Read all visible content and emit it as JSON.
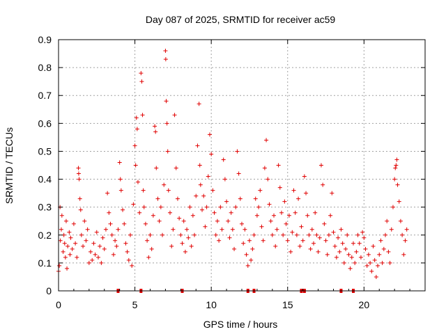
{
  "chart_data": {
    "type": "scatter",
    "marker": "plus",
    "title": "Day 087 of 2025, SRMTID for receiver ac59",
    "xlabel": "GPS time / hours",
    "ylabel": "SRMTID / TECUs",
    "xlim": [
      0,
      24
    ],
    "ylim": [
      0,
      0.9
    ],
    "grid": true,
    "color": "#e00000",
    "xticks": [
      "0",
      "5",
      "10",
      "15",
      "20"
    ],
    "yticks": [
      "0",
      "0.1",
      "0.2",
      "0.3",
      "0.4",
      "0.5",
      "0.6",
      "0.7",
      "0.8",
      "0.9"
    ],
    "points": [
      [
        0.0,
        0.07
      ],
      [
        0.05,
        0.09
      ],
      [
        0.1,
        0.3
      ],
      [
        0.12,
        0.18
      ],
      [
        0.18,
        0.22
      ],
      [
        0.22,
        0.27
      ],
      [
        0.3,
        0.14
      ],
      [
        0.35,
        0.2
      ],
      [
        0.4,
        0.17
      ],
      [
        0.45,
        0.12
      ],
      [
        0.5,
        0.25
      ],
      [
        0.55,
        0.08
      ],
      [
        0.6,
        0.16
      ],
      [
        0.7,
        0.21
      ],
      [
        0.75,
        0.13
      ],
      [
        0.8,
        0.19
      ],
      [
        0.9,
        0.15
      ],
      [
        1.0,
        0.24
      ],
      [
        1.1,
        0.17
      ],
      [
        1.2,
        0.12
      ],
      [
        1.3,
        0.44
      ],
      [
        1.32,
        0.42
      ],
      [
        1.35,
        0.4
      ],
      [
        1.4,
        0.33
      ],
      [
        1.45,
        0.29
      ],
      [
        1.5,
        0.2
      ],
      [
        1.6,
        0.16
      ],
      [
        1.7,
        0.25
      ],
      [
        1.8,
        0.18
      ],
      [
        1.9,
        0.22
      ],
      [
        2.0,
        0.1
      ],
      [
        2.1,
        0.14
      ],
      [
        2.2,
        0.11
      ],
      [
        2.3,
        0.17
      ],
      [
        2.4,
        0.13
      ],
      [
        2.5,
        0.21
      ],
      [
        2.6,
        0.12
      ],
      [
        2.7,
        0.16
      ],
      [
        2.8,
        0.1
      ],
      [
        2.9,
        0.19
      ],
      [
        3.0,
        0.15
      ],
      [
        3.1,
        0.22
      ],
      [
        3.2,
        0.35
      ],
      [
        3.3,
        0.28
      ],
      [
        3.4,
        0.24
      ],
      [
        3.5,
        0.2
      ],
      [
        3.6,
        0.13
      ],
      [
        3.7,
        0.18
      ],
      [
        3.8,
        0.16
      ],
      [
        3.9,
        0.22
      ],
      [
        4.0,
        0.46
      ],
      [
        4.05,
        0.4
      ],
      [
        4.1,
        0.36
      ],
      [
        4.2,
        0.29
      ],
      [
        4.3,
        0.24
      ],
      [
        4.4,
        0.17
      ],
      [
        4.5,
        0.14
      ],
      [
        4.6,
        0.11
      ],
      [
        4.7,
        0.2
      ],
      [
        4.8,
        0.09
      ],
      [
        4.9,
        0.31
      ],
      [
        5.0,
        0.52
      ],
      [
        5.05,
        0.45
      ],
      [
        5.1,
        0.62
      ],
      [
        5.15,
        0.58
      ],
      [
        5.2,
        0.39
      ],
      [
        5.3,
        0.28
      ],
      [
        5.4,
        0.78
      ],
      [
        5.45,
        0.75
      ],
      [
        5.5,
        0.63
      ],
      [
        5.55,
        0.36
      ],
      [
        5.6,
        0.3
      ],
      [
        5.7,
        0.24
      ],
      [
        5.8,
        0.18
      ],
      [
        5.9,
        0.12
      ],
      [
        6.0,
        0.2
      ],
      [
        6.1,
        0.15
      ],
      [
        6.2,
        0.27
      ],
      [
        6.3,
        0.59
      ],
      [
        6.35,
        0.57
      ],
      [
        6.4,
        0.44
      ],
      [
        6.5,
        0.33
      ],
      [
        6.6,
        0.25
      ],
      [
        6.7,
        0.3
      ],
      [
        6.8,
        0.2
      ],
      [
        6.9,
        0.38
      ],
      [
        7.0,
        0.86
      ],
      [
        7.02,
        0.83
      ],
      [
        7.05,
        0.68
      ],
      [
        7.1,
        0.6
      ],
      [
        7.15,
        0.5
      ],
      [
        7.2,
        0.36
      ],
      [
        7.3,
        0.28
      ],
      [
        7.4,
        0.16
      ],
      [
        7.5,
        0.22
      ],
      [
        7.6,
        0.63
      ],
      [
        7.7,
        0.44
      ],
      [
        7.8,
        0.33
      ],
      [
        7.9,
        0.26
      ],
      [
        8.0,
        0.2
      ],
      [
        8.1,
        0.17
      ],
      [
        8.2,
        0.25
      ],
      [
        8.3,
        0.14
      ],
      [
        8.4,
        0.22
      ],
      [
        8.5,
        0.19
      ],
      [
        8.6,
        0.3
      ],
      [
        8.7,
        0.16
      ],
      [
        8.8,
        0.27
      ],
      [
        8.9,
        0.2
      ],
      [
        9.0,
        0.34
      ],
      [
        9.1,
        0.52
      ],
      [
        9.2,
        0.67
      ],
      [
        9.25,
        0.45
      ],
      [
        9.3,
        0.38
      ],
      [
        9.4,
        0.29
      ],
      [
        9.5,
        0.34
      ],
      [
        9.6,
        0.23
      ],
      [
        9.7,
        0.3
      ],
      [
        9.8,
        0.41
      ],
      [
        9.9,
        0.56
      ],
      [
        10.0,
        0.49
      ],
      [
        10.1,
        0.36
      ],
      [
        10.2,
        0.28
      ],
      [
        10.3,
        0.2
      ],
      [
        10.4,
        0.25
      ],
      [
        10.5,
        0.18
      ],
      [
        10.6,
        0.3
      ],
      [
        10.7,
        0.22
      ],
      [
        10.8,
        0.47
      ],
      [
        10.9,
        0.4
      ],
      [
        11.0,
        0.32
      ],
      [
        11.1,
        0.25
      ],
      [
        11.2,
        0.19
      ],
      [
        11.3,
        0.28
      ],
      [
        11.4,
        0.22
      ],
      [
        11.5,
        0.15
      ],
      [
        11.6,
        0.3
      ],
      [
        11.7,
        0.5
      ],
      [
        11.8,
        0.42
      ],
      [
        11.9,
        0.33
      ],
      [
        12.0,
        0.24
      ],
      [
        12.1,
        0.17
      ],
      [
        12.2,
        0.22
      ],
      [
        12.3,
        0.13
      ],
      [
        12.4,
        0.09
      ],
      [
        12.5,
        0.18
      ],
      [
        12.6,
        0.11
      ],
      [
        12.7,
        0.15
      ],
      [
        12.8,
        0.2
      ],
      [
        12.9,
        0.33
      ],
      [
        13.0,
        0.27
      ],
      [
        13.1,
        0.3
      ],
      [
        13.2,
        0.36
      ],
      [
        13.3,
        0.23
      ],
      [
        13.4,
        0.18
      ],
      [
        13.5,
        0.44
      ],
      [
        13.6,
        0.54
      ],
      [
        13.7,
        0.4
      ],
      [
        13.8,
        0.31
      ],
      [
        13.9,
        0.25
      ],
      [
        14.0,
        0.2
      ],
      [
        14.1,
        0.27
      ],
      [
        14.2,
        0.16
      ],
      [
        14.3,
        0.22
      ],
      [
        14.4,
        0.45
      ],
      [
        14.5,
        0.37
      ],
      [
        14.6,
        0.28
      ],
      [
        14.7,
        0.2
      ],
      [
        14.8,
        0.32
      ],
      [
        14.9,
        0.24
      ],
      [
        15.0,
        0.18
      ],
      [
        15.1,
        0.27
      ],
      [
        15.2,
        0.14
      ],
      [
        15.3,
        0.21
      ],
      [
        15.4,
        0.36
      ],
      [
        15.5,
        0.28
      ],
      [
        15.6,
        0.2
      ],
      [
        15.7,
        0.33
      ],
      [
        15.8,
        0.16
      ],
      [
        15.9,
        0.23
      ],
      [
        16.0,
        0.18
      ],
      [
        16.1,
        0.41
      ],
      [
        16.2,
        0.35
      ],
      [
        16.3,
        0.27
      ],
      [
        16.4,
        0.2
      ],
      [
        16.5,
        0.15
      ],
      [
        16.6,
        0.22
      ],
      [
        16.7,
        0.17
      ],
      [
        16.8,
        0.28
      ],
      [
        16.9,
        0.2
      ],
      [
        17.0,
        0.14
      ],
      [
        17.1,
        0.19
      ],
      [
        17.2,
        0.45
      ],
      [
        17.3,
        0.38
      ],
      [
        17.4,
        0.24
      ],
      [
        17.5,
        0.18
      ],
      [
        17.6,
        0.13
      ],
      [
        17.7,
        0.2
      ],
      [
        17.8,
        0.27
      ],
      [
        17.9,
        0.35
      ],
      [
        18.0,
        0.21
      ],
      [
        18.1,
        0.16
      ],
      [
        18.2,
        0.12
      ],
      [
        18.3,
        0.19
      ],
      [
        18.4,
        0.14
      ],
      [
        18.5,
        0.22
      ],
      [
        18.6,
        0.17
      ],
      [
        18.7,
        0.1
      ],
      [
        18.8,
        0.15
      ],
      [
        18.9,
        0.2
      ],
      [
        19.0,
        0.13
      ],
      [
        19.1,
        0.08
      ],
      [
        19.2,
        0.12
      ],
      [
        19.3,
        0.17
      ],
      [
        19.4,
        0.1
      ],
      [
        19.5,
        0.14
      ],
      [
        19.6,
        0.2
      ],
      [
        19.7,
        0.17
      ],
      [
        19.8,
        0.12
      ],
      [
        19.9,
        0.21
      ],
      [
        20.0,
        0.19
      ],
      [
        20.1,
        0.15
      ],
      [
        20.2,
        0.09
      ],
      [
        20.3,
        0.13
      ],
      [
        20.4,
        0.1
      ],
      [
        20.5,
        0.07
      ],
      [
        20.6,
        0.16
      ],
      [
        20.7,
        0.11
      ],
      [
        20.8,
        0.05
      ],
      [
        20.9,
        0.09
      ],
      [
        21.0,
        0.13
      ],
      [
        21.1,
        0.18
      ],
      [
        21.2,
        0.1
      ],
      [
        21.3,
        0.15
      ],
      [
        21.4,
        0.2
      ],
      [
        21.5,
        0.25
      ],
      [
        21.6,
        0.14
      ],
      [
        21.7,
        0.1
      ],
      [
        21.8,
        0.22
      ],
      [
        21.9,
        0.3
      ],
      [
        22.0,
        0.4
      ],
      [
        22.05,
        0.44
      ],
      [
        22.1,
        0.45
      ],
      [
        22.15,
        0.47
      ],
      [
        22.2,
        0.38
      ],
      [
        22.3,
        0.32
      ],
      [
        22.4,
        0.25
      ],
      [
        22.5,
        0.2
      ],
      [
        22.6,
        0.13
      ],
      [
        22.7,
        0.18
      ],
      [
        22.8,
        0.22
      ]
    ],
    "rug_x": [
      3.9,
      5.4,
      8.1,
      12.4,
      12.8,
      15.9,
      16.1,
      18.5,
      19.3
    ]
  }
}
